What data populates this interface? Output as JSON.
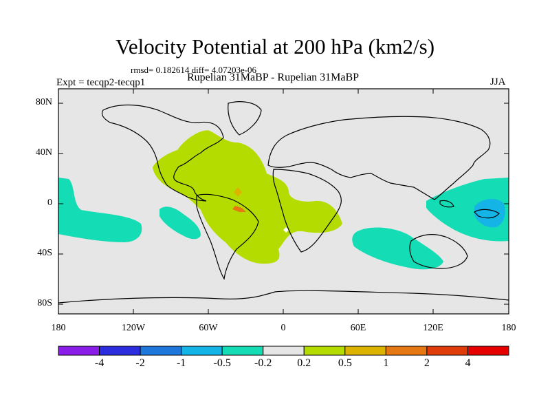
{
  "title": "Velocity Potential at 200 hPa (km2/s)",
  "stats": "rmsd= 0.182614 diff= 4.07203e-06",
  "expt": "Expt = tecqp2-tecqp1",
  "subtitle": "Rupelian  31MaBP - Rupelian  31MaBP",
  "season": "JJA",
  "lat_ticks": [
    "80N",
    "40N",
    "0",
    "40S",
    "80S"
  ],
  "lon_ticks": [
    "180",
    "120W",
    "60W",
    "0",
    "60E",
    "120E",
    "180"
  ],
  "colorbar": {
    "labels": [
      "-4",
      "-2",
      "-1",
      "-0.5",
      "-0.2",
      "0.2",
      "0.5",
      "1",
      "2",
      "4"
    ],
    "colors": [
      "#8a1ee8",
      "#2d2de0",
      "#1e78dc",
      "#14b4e6",
      "#14dcb4",
      "#e6e6e6",
      "#b4dc00",
      "#dcb400",
      "#e67814",
      "#e03c0a",
      "#e60000"
    ]
  },
  "map_colors": {
    "background": "#e6e6e6",
    "positive_weak": "#b4dc00",
    "positive_mid": "#dcb400",
    "positive_strong": "#e67814",
    "negative_weak": "#14dcb4",
    "negative_mid": "#14b4e6"
  }
}
